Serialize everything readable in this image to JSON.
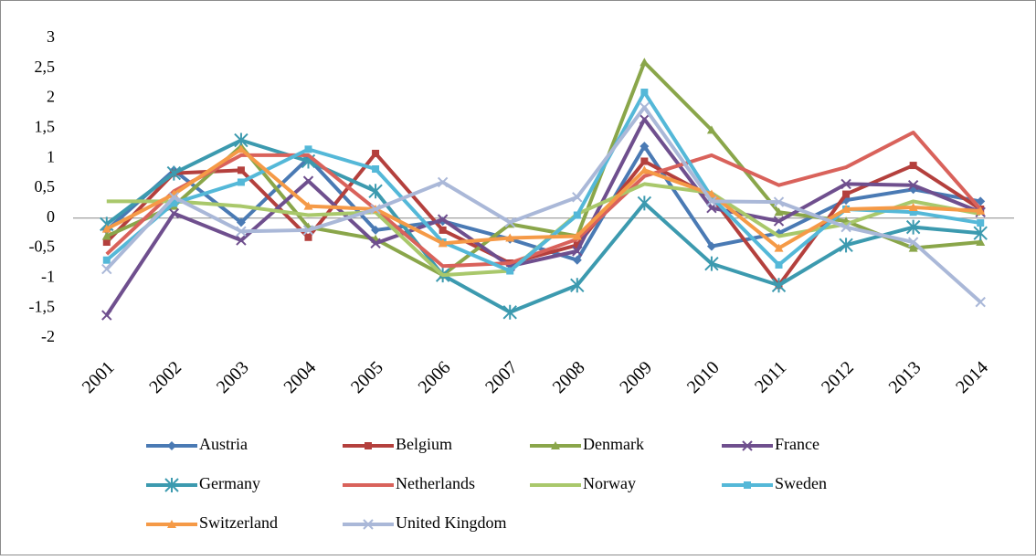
{
  "chart_data": {
    "type": "line",
    "categories": [
      "2001",
      "2002",
      "2003",
      "2004",
      "2005",
      "2006",
      "2007",
      "2008",
      "2009",
      "2010",
      "2011",
      "2012",
      "2013",
      "2014"
    ],
    "ylim": [
      -2,
      3
    ],
    "yticks": [
      -2,
      {
        "value": -1.5,
        "label": "-1,5"
      },
      -1,
      {
        "value": -0.5,
        "label": "-0,5"
      },
      0,
      {
        "value": 0.5,
        "label": "0,5"
      },
      1,
      {
        "value": 1.5,
        "label": "1,5"
      },
      2,
      {
        "value": 2.5,
        "label": "2,5"
      },
      3
    ],
    "grid": false,
    "legend": "bottom",
    "series": [
      {
        "name": "Austria",
        "color": "#4a7ab4",
        "marker": "diamond",
        "values": [
          -0.2,
          0.8,
          -0.07,
          1.0,
          -0.2,
          -0.05,
          -0.35,
          -0.7,
          1.2,
          -0.47,
          -0.25,
          0.3,
          0.48,
          0.28
        ]
      },
      {
        "name": "Belgium",
        "color": "#b4403d",
        "marker": "square",
        "values": [
          -0.4,
          0.75,
          0.8,
          -0.32,
          1.08,
          -0.2,
          -0.75,
          -0.45,
          0.95,
          0.35,
          -1.12,
          0.4,
          0.88,
          0.15
        ]
      },
      {
        "name": "Denmark",
        "color": "#8aa64a",
        "marker": "triangle",
        "values": [
          -0.3,
          0.2,
          1.2,
          -0.15,
          -0.35,
          -0.95,
          -0.1,
          -0.3,
          2.6,
          1.47,
          0.1,
          -0.05,
          -0.5,
          -0.4
        ]
      },
      {
        "name": "France",
        "color": "#6f4f8e",
        "marker": "x",
        "values": [
          -1.62,
          0.08,
          -0.37,
          0.62,
          -0.42,
          -0.02,
          -0.8,
          -0.55,
          1.65,
          0.17,
          -0.05,
          0.57,
          0.55,
          0.1
        ]
      },
      {
        "name": "Germany",
        "color": "#3c9aaf",
        "marker": "star",
        "values": [
          -0.1,
          0.75,
          1.3,
          0.95,
          0.45,
          -0.95,
          -1.57,
          -1.12,
          0.25,
          -0.76,
          -1.12,
          -0.45,
          -0.15,
          -0.25
        ]
      },
      {
        "name": "Netherlands",
        "color": "#d9625b",
        "marker": "none",
        "values": [
          -0.6,
          0.45,
          1.05,
          1.05,
          0.15,
          -0.8,
          -0.75,
          -0.35,
          0.7,
          1.05,
          0.55,
          0.85,
          1.43,
          0.15
        ]
      },
      {
        "name": "Norway",
        "color": "#a9c86b",
        "marker": "none",
        "values": [
          0.28,
          0.28,
          0.2,
          0.05,
          0.1,
          -0.95,
          -0.88,
          0.07,
          0.57,
          0.42,
          -0.3,
          -0.1,
          0.28,
          0.07
        ]
      },
      {
        "name": "Sweden",
        "color": "#54b8d8",
        "marker": "square",
        "values": [
          -0.7,
          0.25,
          0.6,
          1.15,
          0.82,
          -0.4,
          -0.88,
          0.05,
          2.1,
          0.35,
          -0.78,
          0.15,
          0.1,
          -0.08
        ]
      },
      {
        "name": "Switzerland",
        "color": "#f59a47",
        "marker": "triangle",
        "values": [
          -0.18,
          0.4,
          1.15,
          0.2,
          0.15,
          -0.42,
          -0.33,
          -0.3,
          0.8,
          0.4,
          -0.5,
          0.15,
          0.18,
          0.12
        ]
      },
      {
        "name": "United Kingdom",
        "color": "#aab8d8",
        "marker": "x",
        "values": [
          -0.85,
          0.35,
          -0.22,
          -0.2,
          0.15,
          0.6,
          -0.07,
          0.35,
          1.85,
          0.28,
          0.27,
          -0.15,
          -0.4,
          -1.4
        ]
      }
    ]
  }
}
